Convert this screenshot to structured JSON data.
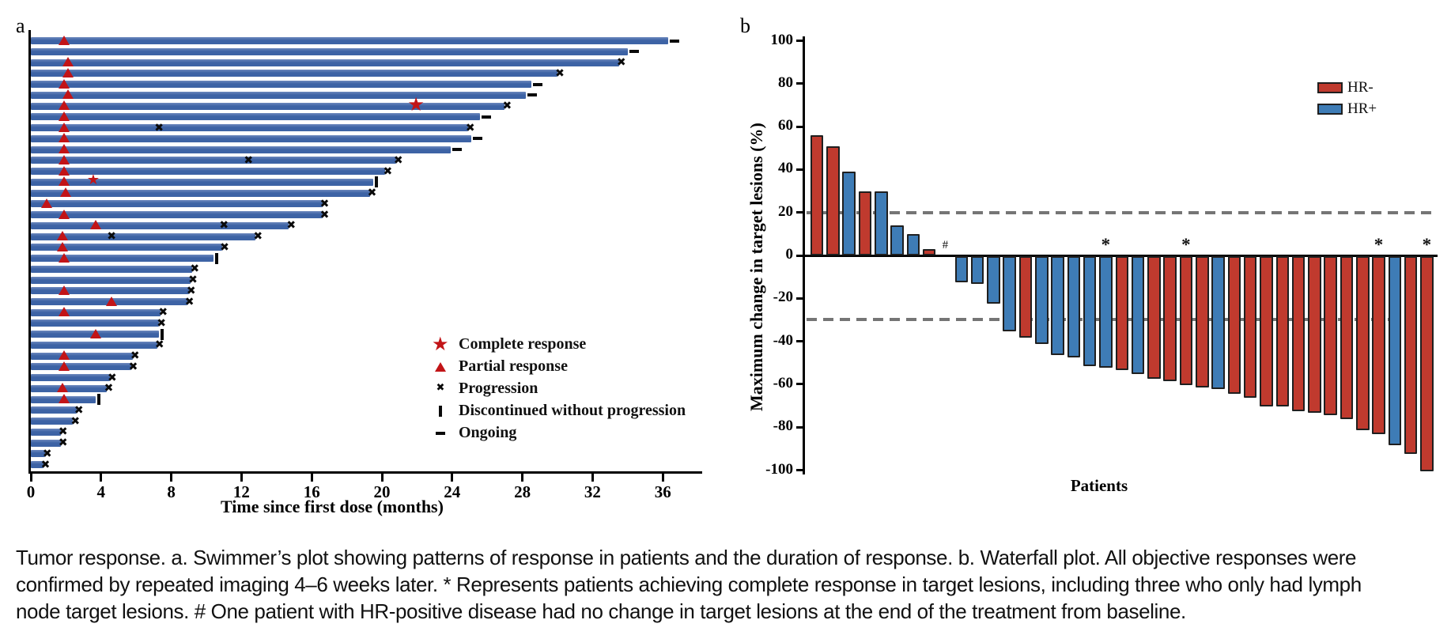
{
  "colors": {
    "swimmer_bar": "#3D63A5",
    "swimmer_bar_top": "#6C88BD",
    "marker_red": "#C21417",
    "hr_negative": "#C03A2E",
    "hr_positive": "#3E7CB6",
    "bar_outline": "#1F1F1F",
    "dash_gray": "#757575",
    "axis_black": "#000000"
  },
  "chart_data": [
    {
      "type": "swimmer",
      "panel_label": "a",
      "xlabel": "Time since first dose (months)",
      "x_ticks": [
        0,
        4,
        8,
        12,
        16,
        20,
        24,
        28,
        32,
        36
      ],
      "xlim": [
        0,
        38
      ],
      "legend": [
        {
          "symbol": "star",
          "label": "Complete response"
        },
        {
          "symbol": "triangle",
          "label": "Partial response"
        },
        {
          "symbol": "x",
          "label": "Progression"
        },
        {
          "symbol": "discontinued",
          "label": "Discontinued without progression"
        },
        {
          "symbol": "ongoing",
          "label": "Ongoing"
        }
      ],
      "rows": [
        {
          "duration": 36.3,
          "pr": 1.9,
          "cr": null,
          "progression_marks": [],
          "end": "ongoing"
        },
        {
          "duration": 34.0,
          "pr": null,
          "cr": null,
          "progression_marks": [],
          "end": "ongoing"
        },
        {
          "duration": 33.5,
          "pr": 2.1,
          "cr": null,
          "progression_marks": [],
          "end": "progression"
        },
        {
          "duration": 30.0,
          "pr": 2.1,
          "cr": null,
          "progression_marks": [],
          "end": "progression"
        },
        {
          "duration": 28.5,
          "pr": 1.9,
          "cr": null,
          "progression_marks": [],
          "end": "ongoing"
        },
        {
          "duration": 28.2,
          "pr": 2.1,
          "cr": null,
          "progression_marks": [],
          "end": "ongoing"
        },
        {
          "duration": 27.0,
          "pr": 1.9,
          "cr": 22.0,
          "progression_marks": [],
          "end": "progression"
        },
        {
          "duration": 25.6,
          "pr": 1.9,
          "cr": null,
          "progression_marks": [],
          "end": "ongoing"
        },
        {
          "duration": 24.9,
          "pr": 1.9,
          "cr": null,
          "progression_marks": [
            7.3
          ],
          "end": "progression"
        },
        {
          "duration": 25.1,
          "pr": 1.9,
          "cr": null,
          "progression_marks": [],
          "end": "ongoing"
        },
        {
          "duration": 23.9,
          "pr": 1.9,
          "cr": null,
          "progression_marks": [],
          "end": "ongoing"
        },
        {
          "duration": 20.8,
          "pr": 1.9,
          "cr": null,
          "progression_marks": [
            12.4
          ],
          "end": "progression"
        },
        {
          "duration": 20.2,
          "pr": 1.9,
          "cr": null,
          "progression_marks": [],
          "end": "progression"
        },
        {
          "duration": 19.5,
          "pr": 1.9,
          "cr": 3.6,
          "progression_marks": [],
          "end": "discontinued"
        },
        {
          "duration": 19.3,
          "pr": 2.0,
          "cr": null,
          "progression_marks": [],
          "end": "progression"
        },
        {
          "duration": 16.6,
          "pr": 0.9,
          "cr": null,
          "progression_marks": [],
          "end": "progression"
        },
        {
          "duration": 16.6,
          "pr": 1.9,
          "cr": null,
          "progression_marks": [],
          "end": "progression"
        },
        {
          "duration": 14.7,
          "pr": 3.7,
          "cr": null,
          "progression_marks": [
            11.0
          ],
          "end": "progression"
        },
        {
          "duration": 12.8,
          "pr": 1.8,
          "cr": null,
          "progression_marks": [
            4.6
          ],
          "end": "progression"
        },
        {
          "duration": 10.9,
          "pr": 1.8,
          "cr": null,
          "progression_marks": [],
          "end": "progression"
        },
        {
          "duration": 10.4,
          "pr": 1.9,
          "cr": null,
          "progression_marks": [],
          "end": "discontinued"
        },
        {
          "duration": 9.2,
          "pr": null,
          "cr": null,
          "progression_marks": [],
          "end": "progression"
        },
        {
          "duration": 9.1,
          "pr": null,
          "cr": null,
          "progression_marks": [],
          "end": "progression"
        },
        {
          "duration": 9.0,
          "pr": 1.9,
          "cr": null,
          "progression_marks": [],
          "end": "progression"
        },
        {
          "duration": 8.9,
          "pr": 4.6,
          "cr": null,
          "progression_marks": [],
          "end": "progression"
        },
        {
          "duration": 7.4,
          "pr": 1.9,
          "cr": null,
          "progression_marks": [],
          "end": "progression"
        },
        {
          "duration": 7.3,
          "pr": null,
          "cr": null,
          "progression_marks": [],
          "end": "progression"
        },
        {
          "duration": 7.3,
          "pr": 3.7,
          "cr": null,
          "progression_marks": [],
          "end": "discontinued"
        },
        {
          "duration": 7.2,
          "pr": null,
          "cr": null,
          "progression_marks": [],
          "end": "progression"
        },
        {
          "duration": 5.8,
          "pr": 1.9,
          "cr": null,
          "progression_marks": [],
          "end": "progression"
        },
        {
          "duration": 5.7,
          "pr": 1.9,
          "cr": null,
          "progression_marks": [],
          "end": "progression"
        },
        {
          "duration": 4.5,
          "pr": null,
          "cr": null,
          "progression_marks": [],
          "end": "progression"
        },
        {
          "duration": 4.3,
          "pr": 1.8,
          "cr": null,
          "progression_marks": [],
          "end": "progression"
        },
        {
          "duration": 3.7,
          "pr": 1.9,
          "cr": null,
          "progression_marks": [],
          "end": "discontinued"
        },
        {
          "duration": 2.6,
          "pr": null,
          "cr": null,
          "progression_marks": [],
          "end": "progression"
        },
        {
          "duration": 2.4,
          "pr": null,
          "cr": null,
          "progression_marks": [],
          "end": "progression"
        },
        {
          "duration": 1.7,
          "pr": null,
          "cr": null,
          "progression_marks": [],
          "end": "progression"
        },
        {
          "duration": 1.7,
          "pr": null,
          "cr": null,
          "progression_marks": [],
          "end": "progression"
        },
        {
          "duration": 0.8,
          "pr": null,
          "cr": null,
          "progression_marks": [],
          "end": "progression"
        },
        {
          "duration": 0.7,
          "pr": null,
          "cr": null,
          "progression_marks": [],
          "end": "progression"
        }
      ]
    },
    {
      "type": "waterfall",
      "panel_label": "b",
      "ylabel": "Maximum change in target lesions (%)",
      "xlabel": "Patients",
      "y_ticks": [
        100,
        80,
        60,
        40,
        20,
        0,
        -20,
        -40,
        -60,
        -80,
        -100
      ],
      "ylim": [
        -100,
        100
      ],
      "reference_lines": [
        20,
        -30
      ],
      "legend": [
        {
          "label": "HR-",
          "group": "HR-"
        },
        {
          "label": "HR+",
          "group": "HR+"
        }
      ],
      "bars": [
        {
          "value": 56,
          "group": "HR-",
          "annotation": null
        },
        {
          "value": 51,
          "group": "HR-",
          "annotation": null
        },
        {
          "value": 39,
          "group": "HR+",
          "annotation": null
        },
        {
          "value": 30,
          "group": "HR-",
          "annotation": null
        },
        {
          "value": 30,
          "group": "HR+",
          "annotation": null
        },
        {
          "value": 14,
          "group": "HR+",
          "annotation": null
        },
        {
          "value": 10,
          "group": "HR+",
          "annotation": null
        },
        {
          "value": 3,
          "group": "HR-",
          "annotation": null
        },
        {
          "value": 0,
          "group": "HR+",
          "annotation": "#"
        },
        {
          "value": -12,
          "group": "HR+",
          "annotation": null
        },
        {
          "value": -13,
          "group": "HR+",
          "annotation": null
        },
        {
          "value": -22,
          "group": "HR+",
          "annotation": null
        },
        {
          "value": -35,
          "group": "HR+",
          "annotation": null
        },
        {
          "value": -38,
          "group": "HR-",
          "annotation": null
        },
        {
          "value": -41,
          "group": "HR+",
          "annotation": null
        },
        {
          "value": -46,
          "group": "HR+",
          "annotation": null
        },
        {
          "value": -47,
          "group": "HR+",
          "annotation": null
        },
        {
          "value": -51,
          "group": "HR+",
          "annotation": null
        },
        {
          "value": -52,
          "group": "HR+",
          "annotation": "*"
        },
        {
          "value": -53,
          "group": "HR-",
          "annotation": null
        },
        {
          "value": -55,
          "group": "HR+",
          "annotation": null
        },
        {
          "value": -57,
          "group": "HR-",
          "annotation": null
        },
        {
          "value": -58,
          "group": "HR-",
          "annotation": null
        },
        {
          "value": -60,
          "group": "HR-",
          "annotation": "*"
        },
        {
          "value": -61,
          "group": "HR-",
          "annotation": null
        },
        {
          "value": -62,
          "group": "HR+",
          "annotation": null
        },
        {
          "value": -64,
          "group": "HR-",
          "annotation": null
        },
        {
          "value": -66,
          "group": "HR-",
          "annotation": null
        },
        {
          "value": -70,
          "group": "HR-",
          "annotation": null
        },
        {
          "value": -70,
          "group": "HR-",
          "annotation": null
        },
        {
          "value": -72,
          "group": "HR-",
          "annotation": null
        },
        {
          "value": -73,
          "group": "HR-",
          "annotation": null
        },
        {
          "value": -74,
          "group": "HR-",
          "annotation": null
        },
        {
          "value": -76,
          "group": "HR-",
          "annotation": null
        },
        {
          "value": -81,
          "group": "HR-",
          "annotation": null
        },
        {
          "value": -83,
          "group": "HR-",
          "annotation": "*"
        },
        {
          "value": -88,
          "group": "HR+",
          "annotation": null
        },
        {
          "value": -92,
          "group": "HR-",
          "annotation": null
        },
        {
          "value": -100,
          "group": "HR-",
          "annotation": "*"
        }
      ]
    }
  ],
  "caption": {
    "lines": [
      "Tumor response. a. Swimmer’s plot showing patterns of response in patients and the duration of response. b. Waterfall plot. All objective responses were",
      "confirmed by repeated imaging 4–6 weeks later. * Represents patients achieving complete response in target lesions, including three who only had lymph",
      "node target lesions. # One patient with HR-positive disease had no change in target lesions at the end of the treatment from baseline."
    ]
  }
}
